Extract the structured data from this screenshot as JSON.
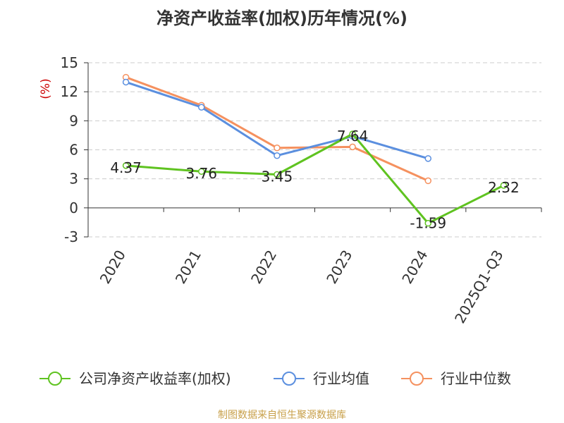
{
  "title": "净资产收益率(加权)历年情况(%)",
  "footer": "制图数据来自恒生聚源数据库",
  "colors": {
    "footer": "#c8a04a",
    "unit": "#cc0000",
    "axis": "#333333",
    "grid": "#cccccc"
  },
  "chart_data": {
    "type": "line",
    "title": "净资产收益率(加权)历年情况(%)",
    "ylabel": "(%)",
    "categories": [
      "2020",
      "2021",
      "2022",
      "2023",
      "2024",
      "2025Q1-Q3"
    ],
    "ylim": [
      -3,
      15
    ],
    "yticks": [
      -3,
      0,
      3,
      6,
      9,
      12,
      15
    ],
    "grid": true,
    "legend_position": "bottom",
    "series": [
      {
        "name": "公司净资产收益率(加权)",
        "color": "#5fc320",
        "values": [
          4.37,
          3.76,
          3.45,
          7.64,
          -1.59,
          2.32
        ],
        "labels": [
          "4.37",
          "3.76",
          "3.45",
          "7.64",
          "-1.59",
          "2.32"
        ]
      },
      {
        "name": "行业均值",
        "color": "#5b8fdf",
        "values": [
          13.0,
          10.4,
          5.4,
          7.4,
          5.1,
          null
        ]
      },
      {
        "name": "行业中位数",
        "color": "#f5915f",
        "values": [
          13.5,
          10.6,
          6.2,
          6.3,
          2.8,
          null
        ]
      }
    ]
  }
}
